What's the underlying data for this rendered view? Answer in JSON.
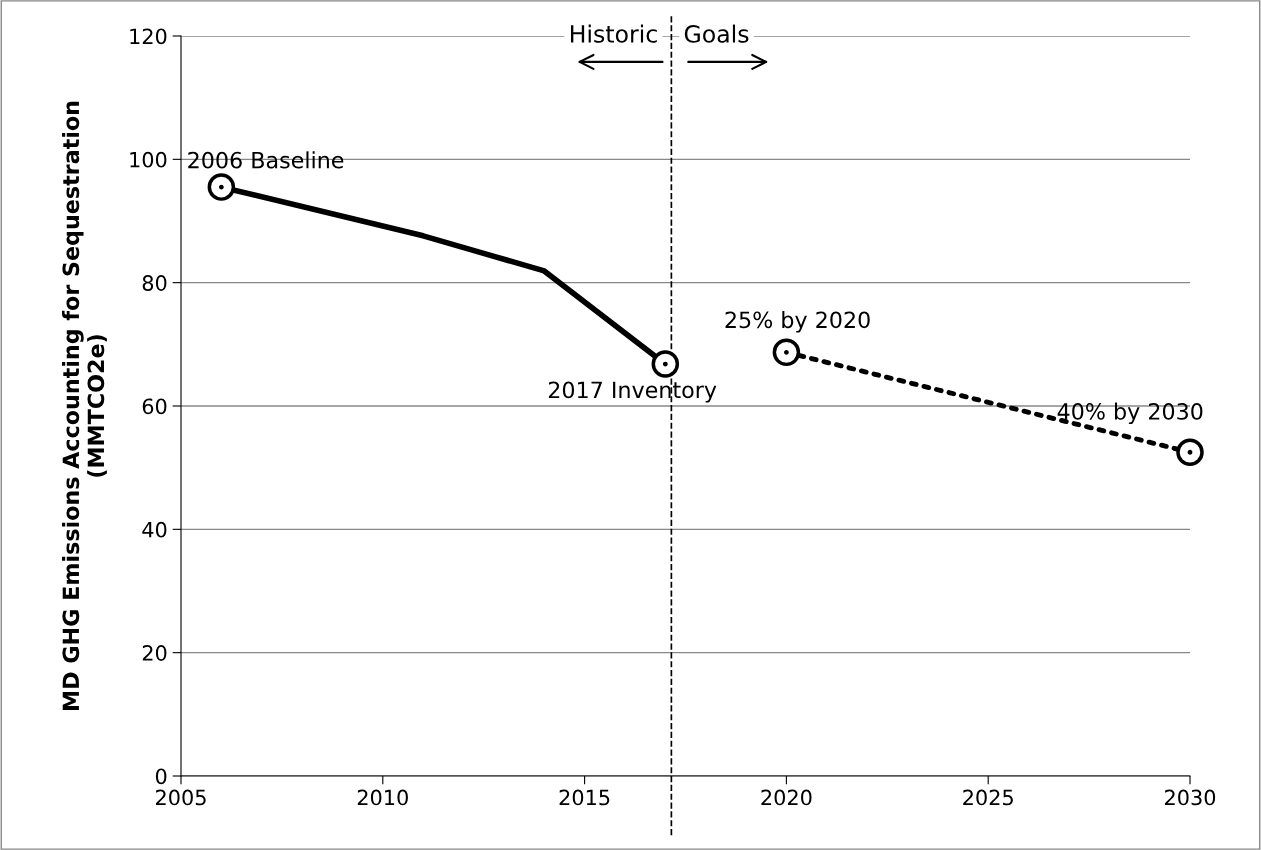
{
  "chart_data": {
    "type": "line",
    "ylabel": "MD GHG Emissions Accounting for Sequestration\n(MMTCO2e)",
    "series": [
      {
        "color": "#000000",
        "line_style": "solid",
        "x": [
          2006,
          2011,
          2014,
          2017
        ],
        "values": [
          95.5,
          87.6,
          81.9,
          66.8
        ]
      },
      {
        "color": "#000000",
        "line_style": "dotted",
        "marker": "none",
        "x": [
          2020,
          2030
        ],
        "values": [
          68.7,
          52.5
        ]
      },
      {
        "type": "scatter",
        "color": "#000000",
        "marker": "circle",
        "x": [
          2006,
          2017,
          2020,
          2030
        ],
        "values": [
          95.5,
          66.8,
          68.7,
          52.5
        ]
      }
    ],
    "xlim": [
      2005,
      2030
    ],
    "xticks": [
      2005,
      2010,
      2015,
      2020,
      2025,
      2030
    ],
    "ylim": [
      0,
      120
    ],
    "yticks": [
      0,
      20,
      40,
      60,
      80,
      100,
      120
    ],
    "grid": "y",
    "ref_lines": [
      {
        "axis": "x",
        "value": 2017.15,
        "line_style": "dashed",
        "color": "#000000"
      }
    ],
    "annotations": [
      {
        "text": "2006 Baseline",
        "x": 2006,
        "y": 95.5
      },
      {
        "text": "2017 Inventory",
        "x": 2017,
        "y": 66.8
      },
      {
        "text": "25% by 2020",
        "x": 2020,
        "y": 68.7
      },
      {
        "text": "40% by 2030",
        "x": 2030,
        "y": 52.5
      },
      "Historic",
      "Goals"
    ]
  }
}
